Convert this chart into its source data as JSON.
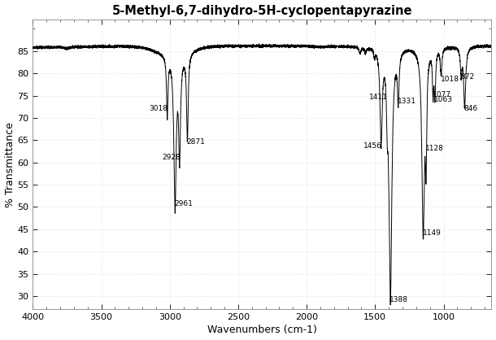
{
  "title": "5-Methyl-6,7-dihydro-5H-cyclopentapyrazine",
  "xlabel": "Wavenumbers (cm-1)",
  "ylabel": "% Transmittance",
  "xlim": [
    4000,
    650
  ],
  "ylim": [
    27,
    92
  ],
  "yticks": [
    30,
    35,
    40,
    45,
    50,
    55,
    60,
    65,
    70,
    75,
    80,
    85
  ],
  "xticks": [
    4000,
    3500,
    3000,
    2500,
    2000,
    1500,
    1000
  ],
  "background_color": "#ffffff",
  "plot_bg_color": "#ffffff",
  "line_color": "#000000",
  "grid_color": "#c8b8c8",
  "annotations": [
    {
      "wavenumber": 3018,
      "transmittance": 73.5,
      "label": "3018",
      "ha": "right"
    },
    {
      "wavenumber": 2961,
      "transmittance": 52.0,
      "label": "2961",
      "ha": "left"
    },
    {
      "wavenumber": 2928,
      "transmittance": 62.5,
      "label": "2928",
      "ha": "right"
    },
    {
      "wavenumber": 2871,
      "transmittance": 66.0,
      "label": "2871",
      "ha": "left"
    },
    {
      "wavenumber": 1456,
      "transmittance": 65.0,
      "label": "1456",
      "ha": "right"
    },
    {
      "wavenumber": 1388,
      "transmittance": 30.5,
      "label": "1388",
      "ha": "left"
    },
    {
      "wavenumber": 1331,
      "transmittance": 75.0,
      "label": "1331",
      "ha": "left"
    },
    {
      "wavenumber": 1149,
      "transmittance": 45.5,
      "label": "1149",
      "ha": "left"
    },
    {
      "wavenumber": 1128,
      "transmittance": 64.5,
      "label": "1128",
      "ha": "left"
    },
    {
      "wavenumber": 1077,
      "transmittance": 76.5,
      "label": "1077",
      "ha": "left"
    },
    {
      "wavenumber": 1063,
      "transmittance": 75.5,
      "label": "1063",
      "ha": "left"
    },
    {
      "wavenumber": 1018,
      "transmittance": 80.0,
      "label": "1018",
      "ha": "left"
    },
    {
      "wavenumber": 872,
      "transmittance": 80.5,
      "label": "872",
      "ha": "left"
    },
    {
      "wavenumber": 846,
      "transmittance": 73.5,
      "label": "846",
      "ha": "left"
    },
    {
      "wavenumber": 1411,
      "transmittance": 76.0,
      "label": "1411",
      "ha": "right"
    }
  ]
}
